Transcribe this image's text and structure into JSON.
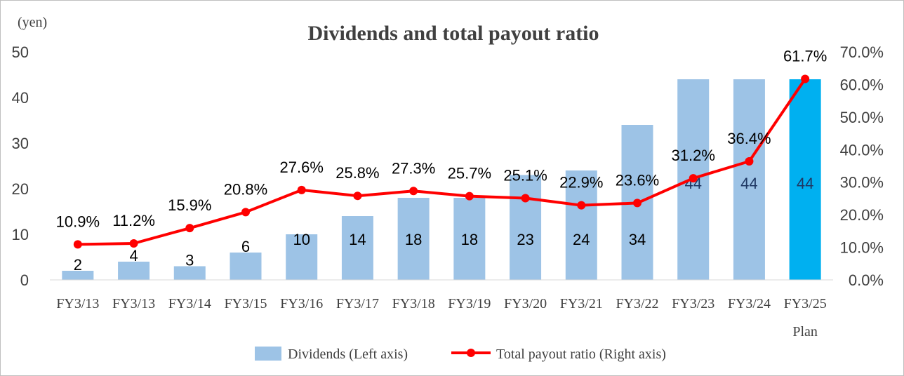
{
  "chart_data": {
    "type": "bar",
    "title": "Dividends and total payout ratio",
    "y_left_unit": "(yen)",
    "y_left_range": [
      0,
      50
    ],
    "y_left_ticks": [
      "0",
      "10",
      "20",
      "30",
      "40",
      "50"
    ],
    "y_right_range": [
      0,
      70
    ],
    "y_right_ticks": [
      "0.0%",
      "10.0%",
      "20.0%",
      "30.0%",
      "40.0%",
      "50.0%",
      "60.0%",
      "70.0%"
    ],
    "categories": [
      "FY3/13",
      "FY3/13",
      "FY3/14",
      "FY3/15",
      "FY3/16",
      "FY3/17",
      "FY3/18",
      "FY3/19",
      "FY3/20",
      "FY3/21",
      "FY3/22",
      "FY3/23",
      "FY3/24",
      "FY3/25"
    ],
    "category_sublabels": [
      "",
      "",
      "",
      "",
      "",
      "",
      "",
      "",
      "",
      "",
      "",
      "",
      "",
      "Plan"
    ],
    "grid": false,
    "legend_position": "bottom",
    "series": [
      {
        "name": "Dividends (Left axis)",
        "kind": "bar",
        "axis": "left",
        "values": [
          2,
          4,
          3,
          6,
          10,
          14,
          18,
          18,
          23,
          24,
          34,
          44,
          44,
          44
        ],
        "labels": [
          "2",
          "4",
          "3",
          "6",
          "10",
          "14",
          "18",
          "18",
          "23",
          "24",
          "34",
          "44",
          "44",
          "44"
        ],
        "color": "#9dc3e6",
        "highlight_color": "#00b0f0",
        "highlight_index": 13
      },
      {
        "name": "Total payout ratio (Right axis)",
        "kind": "line",
        "axis": "right",
        "values": [
          10.9,
          11.2,
          15.9,
          20.8,
          27.6,
          25.8,
          27.3,
          25.7,
          25.1,
          22.9,
          23.6,
          31.2,
          36.4,
          61.7
        ],
        "labels": [
          "10.9%",
          "11.2%",
          "15.9%",
          "20.8%",
          "27.6%",
          "25.8%",
          "27.3%",
          "25.7%",
          "25.1%",
          "22.9%",
          "23.6%",
          "31.2%",
          "36.4%",
          "61.7%"
        ],
        "color": "#ff0000"
      }
    ]
  }
}
